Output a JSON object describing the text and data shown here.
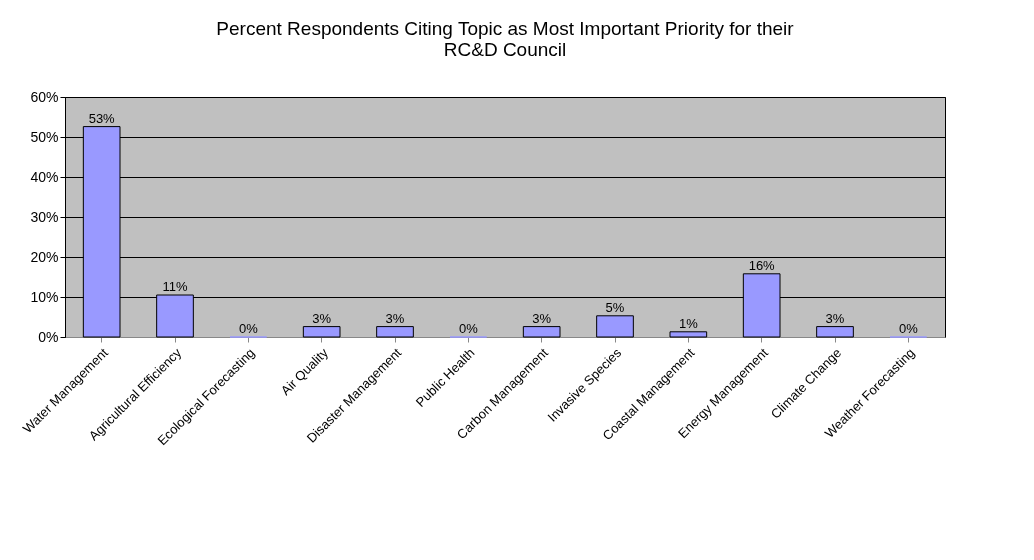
{
  "chart_data": {
    "type": "bar",
    "title": "Percent Respondents Citing Topic as Most Important Priority for their RC&D Council",
    "categories": [
      "Water Management",
      "Agricultural Efficiency",
      "Ecological Forecasting",
      "Air Quality",
      "Disaster Management",
      "Public Health",
      "Carbon Management",
      "Invasive Species",
      "Coastal Management",
      "Energy Management",
      "Climate Change",
      "Weather Forecasting"
    ],
    "values": [
      52.6,
      10.5,
      0,
      2.6,
      2.6,
      0,
      2.6,
      5.3,
      1.3,
      15.8,
      2.6,
      0
    ],
    "value_labels": [
      "53%",
      "11%",
      "0%",
      "3%",
      "3%",
      "0%",
      "3%",
      "5%",
      "1%",
      "16%",
      "3%",
      "0%"
    ],
    "color": "#9999ff",
    "ylim": [
      0,
      60
    ],
    "yticks": [
      {
        "value": 0,
        "label": "0%"
      },
      {
        "value": 10,
        "label": "10%"
      },
      {
        "value": 20,
        "label": "20%"
      },
      {
        "value": 30,
        "label": "30%"
      },
      {
        "value": 40,
        "label": "40%"
      },
      {
        "value": 50,
        "label": "50%"
      },
      {
        "value": 60,
        "label": "60%"
      }
    ],
    "grid": "y"
  }
}
